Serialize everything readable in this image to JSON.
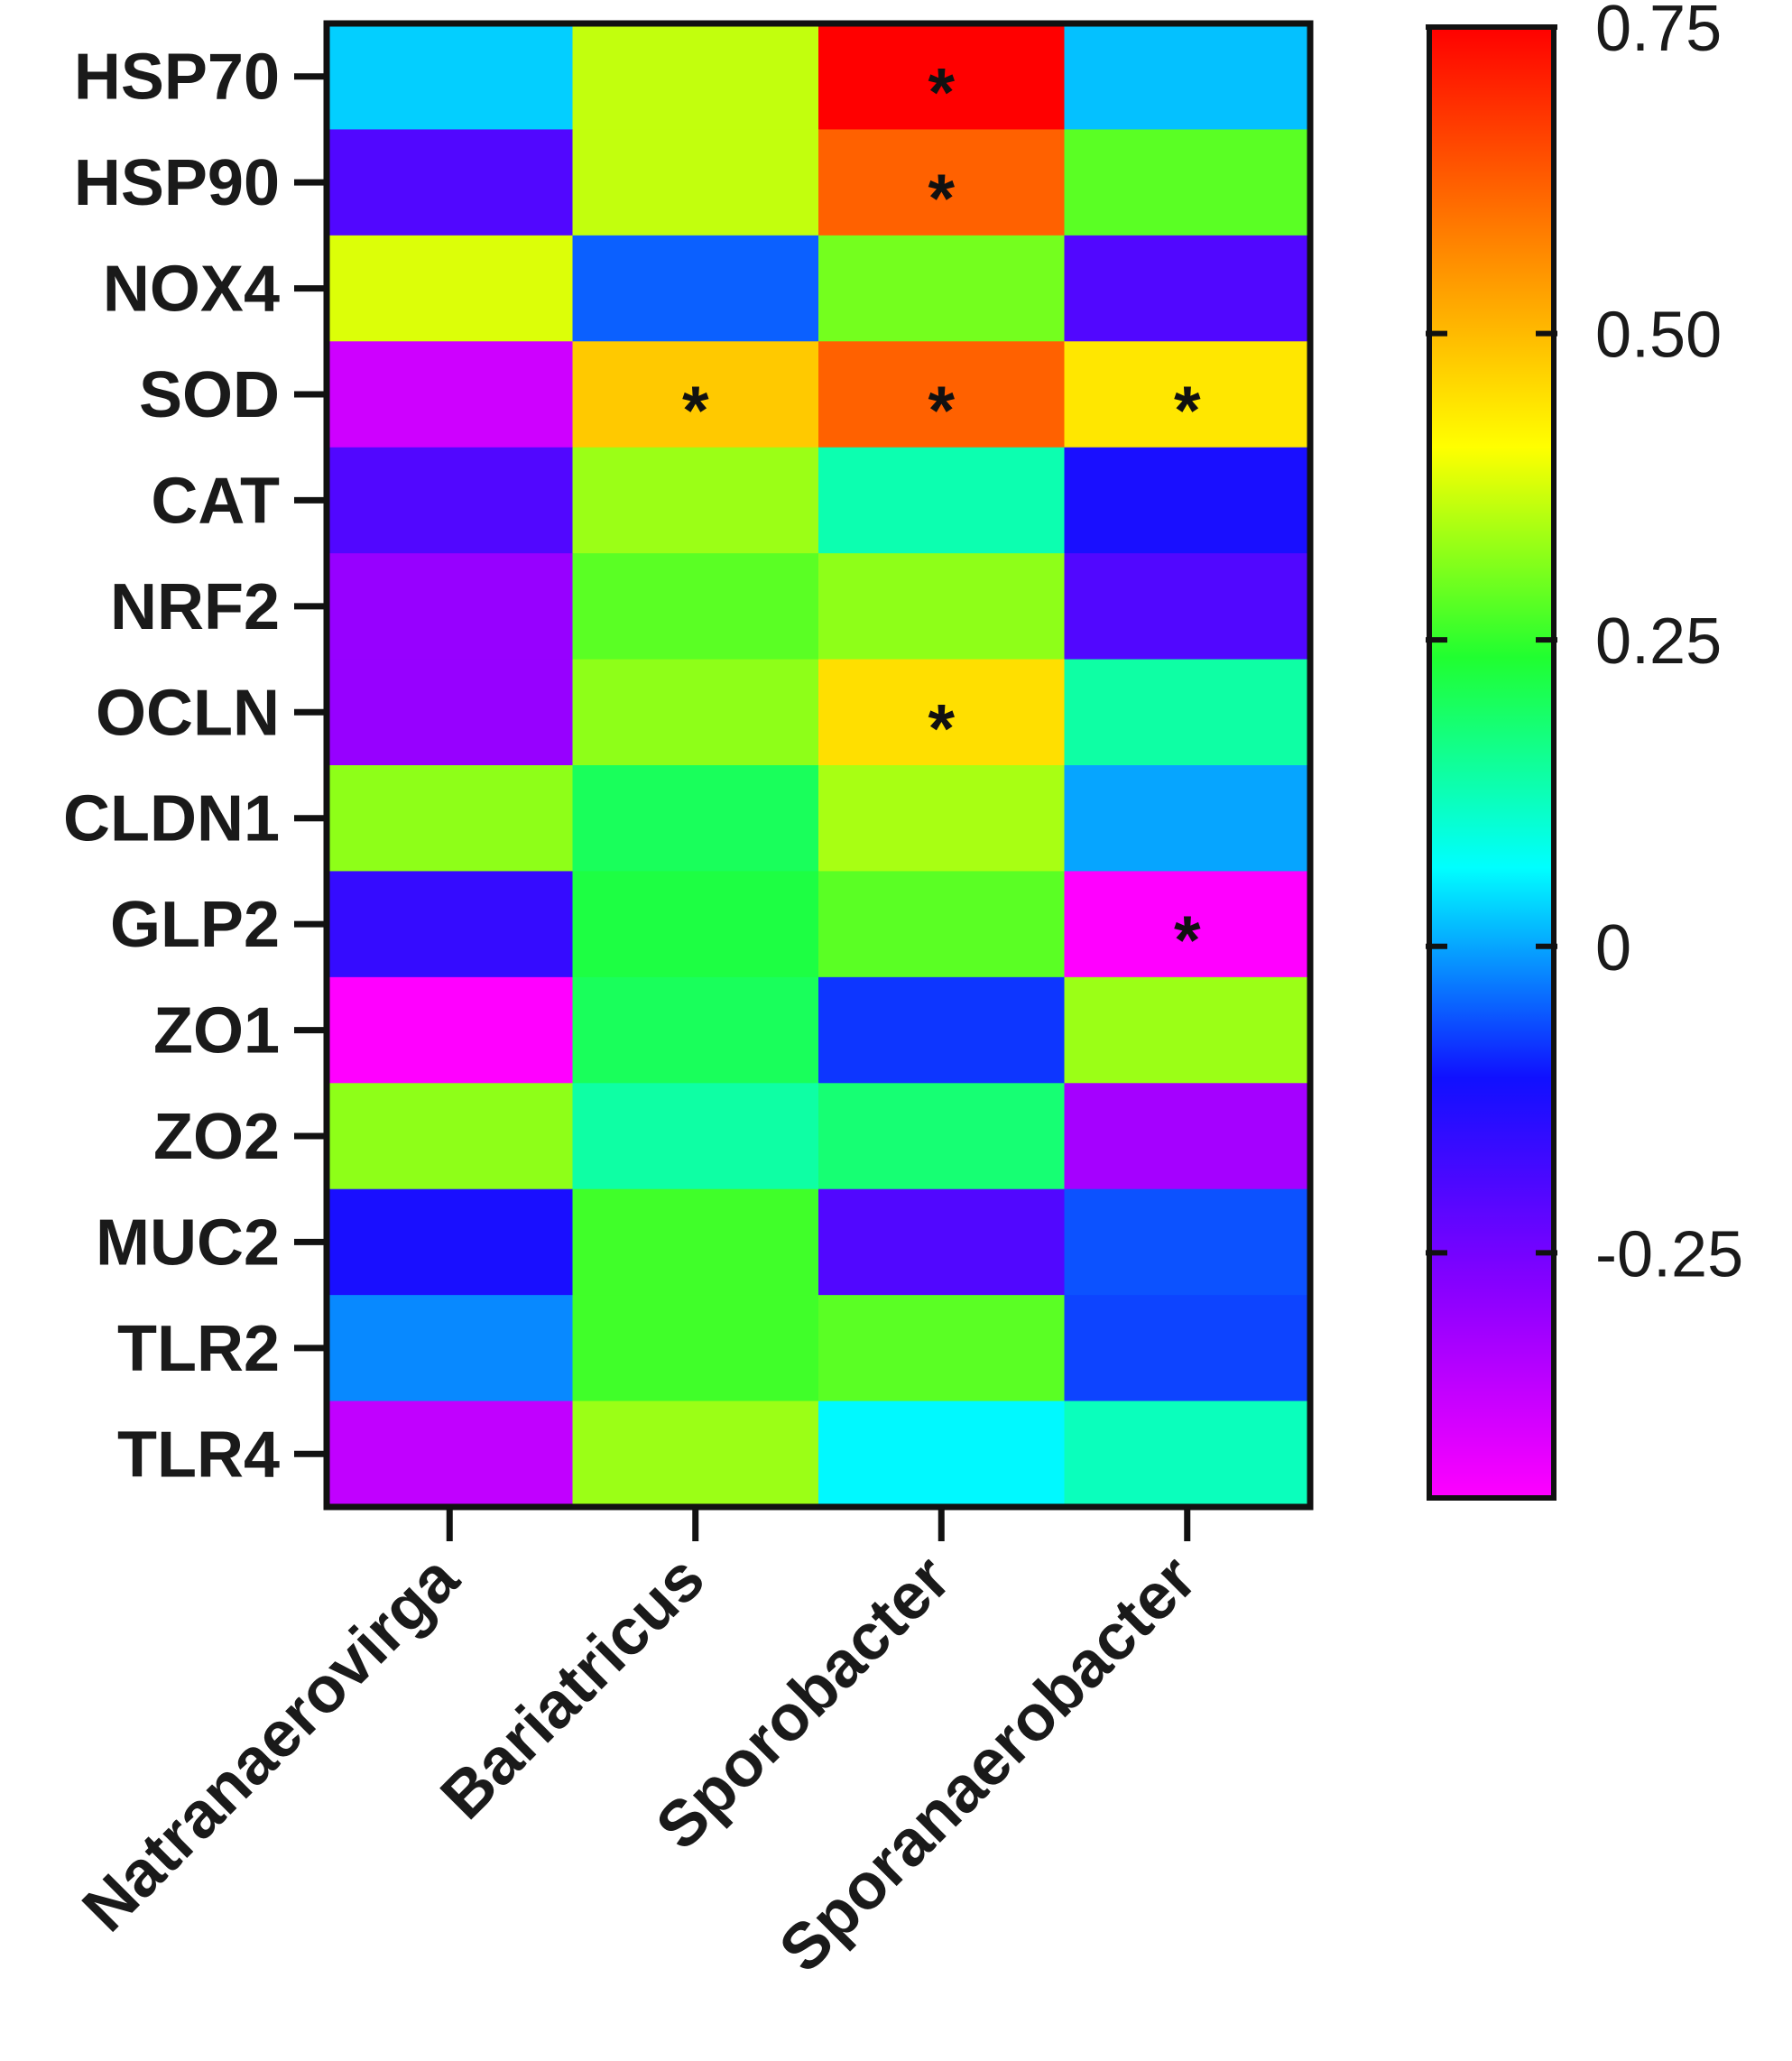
{
  "chart_data": {
    "type": "heatmap",
    "title": "",
    "xlabel": "",
    "ylabel": "",
    "rows": [
      "HSP70",
      "HSP90",
      "NOX4",
      "SOD",
      "CAT",
      "NRF2",
      "OCLN",
      "CLDN1",
      "GLP2",
      "ZO1",
      "ZO2",
      "MUC2",
      "TLR2",
      "TLR4"
    ],
    "columns": [
      "Natranaerovirga",
      "Bariatricus",
      "Sporobacter",
      "Sporanaerobacter"
    ],
    "values": [
      [
        0.03,
        0.36,
        0.75,
        0.02
      ],
      [
        -0.2,
        0.36,
        0.62,
        0.28
      ],
      [
        0.38,
        -0.05,
        0.3,
        -0.2
      ],
      [
        -0.38,
        0.48,
        0.62,
        0.44
      ],
      [
        -0.2,
        0.33,
        0.13,
        -0.12
      ],
      [
        -0.3,
        0.28,
        0.32,
        -0.2
      ],
      [
        -0.3,
        0.32,
        0.45,
        0.14
      ],
      [
        0.32,
        0.2,
        0.34,
        0.0
      ],
      [
        -0.16,
        0.22,
        0.28,
        -0.45
      ],
      [
        -0.45,
        0.2,
        -0.08,
        0.33
      ],
      [
        0.32,
        0.14,
        0.18,
        -0.32
      ],
      [
        -0.12,
        0.26,
        -0.2,
        -0.06
      ],
      [
        -0.02,
        0.26,
        0.28,
        -0.07
      ],
      [
        -0.36,
        0.33,
        0.06,
        0.12
      ]
    ],
    "significance": [
      [
        "",
        "",
        "*",
        ""
      ],
      [
        "",
        "",
        "*",
        ""
      ],
      [
        "",
        "",
        "",
        ""
      ],
      [
        "",
        "*",
        "*",
        "*"
      ],
      [
        "",
        "",
        "",
        ""
      ],
      [
        "",
        "",
        "",
        ""
      ],
      [
        "",
        "",
        "*",
        ""
      ],
      [
        "",
        "",
        "",
        ""
      ],
      [
        "",
        "",
        "",
        "*"
      ],
      [
        "",
        "",
        "",
        ""
      ],
      [
        "",
        "",
        "",
        ""
      ],
      [
        "",
        "",
        "",
        ""
      ],
      [
        "",
        "",
        "",
        ""
      ],
      [
        "",
        "",
        "",
        ""
      ]
    ],
    "colorbar": {
      "range": [
        -0.45,
        0.75
      ],
      "ticks": [
        0.75,
        0.5,
        0.25,
        0,
        -0.25
      ],
      "tick_labels": [
        "0.75",
        "0.50",
        "0.25",
        "0",
        "-0.25"
      ],
      "colors": [
        "#ff00ff",
        "#8800ff",
        "#1010ff",
        "#00ffff",
        "#20ff30",
        "#ffff00",
        "#ff8000",
        "#ff0000"
      ]
    }
  }
}
